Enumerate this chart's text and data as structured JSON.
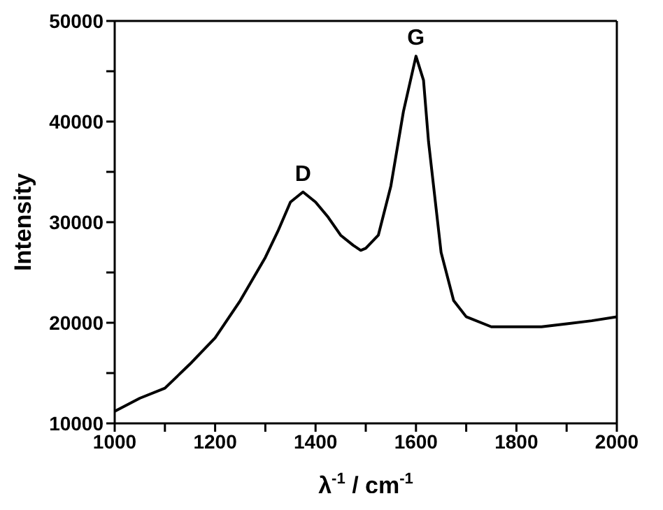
{
  "chart_data": {
    "type": "line",
    "xlabel": "λ$^{-1}$ / cm$^{-1}$",
    "ylabel": "Intensity",
    "x": [
      1000,
      1050,
      1100,
      1150,
      1200,
      1250,
      1300,
      1325,
      1350,
      1375,
      1400,
      1425,
      1450,
      1475,
      1490,
      1500,
      1525,
      1550,
      1575,
      1600,
      1615,
      1625,
      1650,
      1675,
      1700,
      1750,
      1800,
      1850,
      1900,
      1950,
      2000
    ],
    "series": [
      {
        "color": "#000000",
        "values": [
          11200,
          12500,
          13500,
          15900,
          18500,
          22200,
          26500,
          29100,
          32000,
          33000,
          32000,
          30500,
          28700,
          27700,
          27200,
          27400,
          28700,
          33600,
          41000,
          46500,
          44100,
          38000,
          27000,
          22200,
          20600,
          19600,
          19600,
          19600,
          19900,
          20200,
          20600
        ]
      }
    ],
    "xlim": [
      1000,
      2000
    ],
    "xticks": [
      1000,
      {
        "value": 1100,
        "label": null
      },
      1200,
      {
        "value": 1300,
        "label": null
      },
      1400,
      {
        "value": 1500,
        "label": null
      },
      1600,
      {
        "value": 1700,
        "label": null
      },
      1800,
      {
        "value": 1900,
        "label": null
      },
      2000
    ],
    "ylim": [
      10000,
      50000
    ],
    "yticks": [
      10000,
      {
        "value": 15000,
        "label": null
      },
      20000,
      {
        "value": 25000,
        "label": null
      },
      30000,
      {
        "value": 35000,
        "label": null
      },
      40000,
      {
        "value": 45000,
        "label": null
      },
      50000
    ],
    "annotations": [
      {
        "text": "D",
        "x": 1375,
        "y": 33000
      },
      {
        "text": "G",
        "x": 1600,
        "y": 46500
      }
    ],
    "grid": false,
    "legend": false,
    "marker": "none",
    "line_style": "solid"
  }
}
